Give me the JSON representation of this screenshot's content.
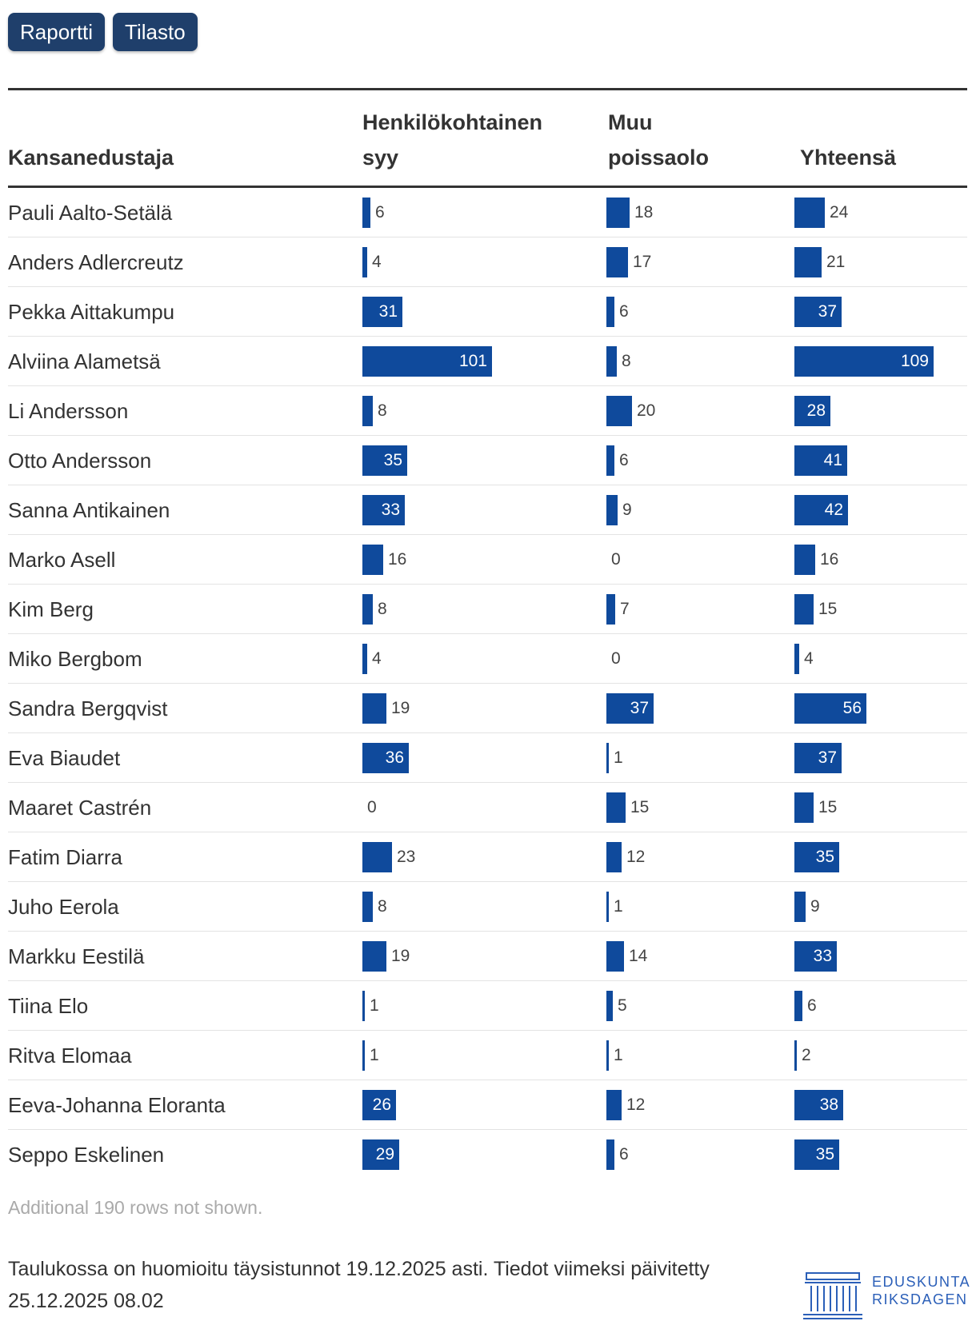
{
  "tabs": [
    {
      "label": "Raportti"
    },
    {
      "label": "Tilasto"
    }
  ],
  "chart_data": {
    "type": "table",
    "columns": [
      "Kansanedustaja",
      "Henkilökohtainen syy",
      "Muu poissaolo",
      "Yhteensä"
    ],
    "header_lines": {
      "name": [
        "Kansanedustaja"
      ],
      "c1": [
        "Henkilökohtainen",
        "syy"
      ],
      "c2": [
        "Muu",
        "poissaolo"
      ],
      "c3": [
        "Yhteensä"
      ]
    },
    "rows": [
      {
        "name": "Pauli Aalto-Setälä",
        "henkilokohtainen": 6,
        "muu": 18,
        "yhteensa": 24
      },
      {
        "name": "Anders Adlercreutz",
        "henkilokohtainen": 4,
        "muu": 17,
        "yhteensa": 21
      },
      {
        "name": "Pekka Aittakumpu",
        "henkilokohtainen": 31,
        "muu": 6,
        "yhteensa": 37
      },
      {
        "name": "Alviina Alametsä",
        "henkilokohtainen": 101,
        "muu": 8,
        "yhteensa": 109
      },
      {
        "name": "Li Andersson",
        "henkilokohtainen": 8,
        "muu": 20,
        "yhteensa": 28
      },
      {
        "name": "Otto Andersson",
        "henkilokohtainen": 35,
        "muu": 6,
        "yhteensa": 41
      },
      {
        "name": "Sanna Antikainen",
        "henkilokohtainen": 33,
        "muu": 9,
        "yhteensa": 42
      },
      {
        "name": "Marko Asell",
        "henkilokohtainen": 16,
        "muu": 0,
        "yhteensa": 16
      },
      {
        "name": "Kim Berg",
        "henkilokohtainen": 8,
        "muu": 7,
        "yhteensa": 15
      },
      {
        "name": "Miko Bergbom",
        "henkilokohtainen": 4,
        "muu": 0,
        "yhteensa": 4
      },
      {
        "name": "Sandra Bergqvist",
        "henkilokohtainen": 19,
        "muu": 37,
        "yhteensa": 56
      },
      {
        "name": "Eva Biaudet",
        "henkilokohtainen": 36,
        "muu": 1,
        "yhteensa": 37
      },
      {
        "name": "Maaret Castrén",
        "henkilokohtainen": 0,
        "muu": 15,
        "yhteensa": 15
      },
      {
        "name": "Fatim Diarra",
        "henkilokohtainen": 23,
        "muu": 12,
        "yhteensa": 35
      },
      {
        "name": "Juho Eerola",
        "henkilokohtainen": 8,
        "muu": 1,
        "yhteensa": 9
      },
      {
        "name": "Markku Eestilä",
        "henkilokohtainen": 19,
        "muu": 14,
        "yhteensa": 33
      },
      {
        "name": "Tiina Elo",
        "henkilokohtainen": 1,
        "muu": 5,
        "yhteensa": 6
      },
      {
        "name": "Ritva Elomaa",
        "henkilokohtainen": 1,
        "muu": 1,
        "yhteensa": 2
      },
      {
        "name": "Eeva-Johanna Eloranta",
        "henkilokohtainen": 26,
        "muu": 12,
        "yhteensa": 38
      },
      {
        "name": "Seppo Eskelinen",
        "henkilokohtainen": 29,
        "muu": 6,
        "yhteensa": 35
      }
    ]
  },
  "note": "Additional 190 rows not shown.",
  "footer": {
    "text": "Taulukossa on huomioitu täysistunnot 19.12.2025 asti. Tiedot viimeksi päivitetty 25.12.2025 08.02"
  },
  "logo": {
    "line1": "EDUSKUNTA",
    "line2": "RIKSDAGEN",
    "icon": "parliament-building-icon"
  },
  "colors": {
    "bar": "#0f4a9c",
    "button": "#1f3f6b",
    "logo": "#2b5fb8"
  }
}
